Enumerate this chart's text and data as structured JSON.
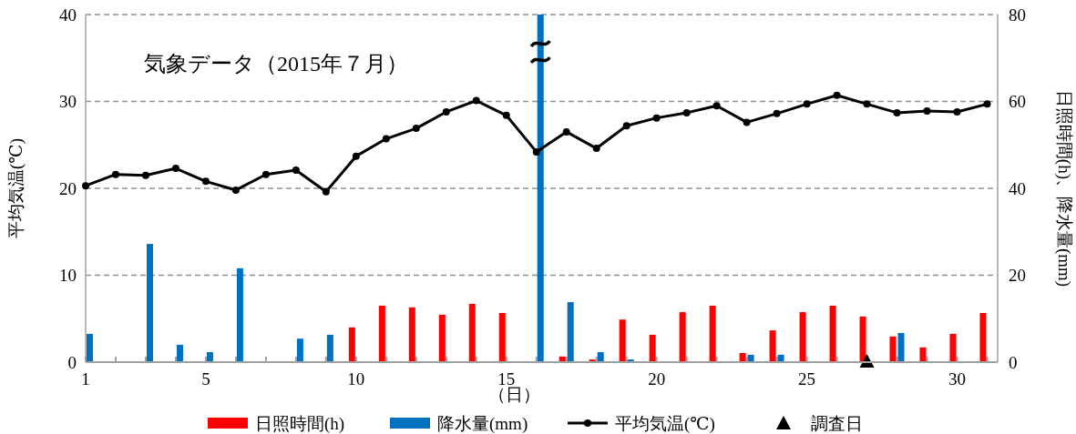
{
  "chart_data": {
    "type": "bar",
    "title": "気象データ（2015年７月）",
    "xlabel": "（日）",
    "ylabel": "平均気温(℃)",
    "y2label": "日照時間(h)、降水量(mm)",
    "xlim": [
      1,
      31.35
    ],
    "xticks": [
      1,
      {
        "value": 2,
        "label": null
      },
      {
        "value": 3,
        "label": null
      },
      {
        "value": 4,
        "label": null
      },
      5,
      {
        "value": 6,
        "label": null
      },
      {
        "value": 7,
        "label": null
      },
      {
        "value": 8,
        "label": null
      },
      {
        "value": 9,
        "label": null
      },
      10,
      {
        "value": 11,
        "label": null
      },
      {
        "value": 12,
        "label": null
      },
      {
        "value": 13,
        "label": null
      },
      {
        "value": 14,
        "label": null
      },
      15,
      {
        "value": 16,
        "label": null
      },
      {
        "value": 17,
        "label": null
      },
      {
        "value": 18,
        "label": null
      },
      {
        "value": 19,
        "label": null
      },
      20,
      {
        "value": 21,
        "label": null
      },
      {
        "value": 22,
        "label": null
      },
      {
        "value": 23,
        "label": null
      },
      {
        "value": 24,
        "label": null
      },
      25,
      {
        "value": 26,
        "label": null
      },
      {
        "value": 27,
        "label": null
      },
      {
        "value": 28,
        "label": null
      },
      {
        "value": 29,
        "label": null
      },
      30,
      {
        "value": 31,
        "label": null
      }
    ],
    "ylim": [
      0,
      40
    ],
    "yticks": [
      0,
      10,
      20,
      30,
      40
    ],
    "y2lim": [
      0,
      80
    ],
    "y2ticks": [
      0,
      20,
      40,
      60,
      80
    ],
    "grid": "y",
    "legend": "bottom",
    "x": [
      1,
      2,
      3,
      4,
      5,
      6,
      7,
      8,
      9,
      10,
      11,
      12,
      13,
      14,
      15,
      16,
      17,
      18,
      19,
      20,
      21,
      22,
      23,
      24,
      25,
      26,
      27,
      28,
      29,
      30,
      31
    ],
    "series": [
      {
        "name": "日照時間(h)",
        "axis": "y2",
        "color": "#ff0000",
        "values": [
          null,
          null,
          null,
          null,
          null,
          null,
          null,
          null,
          null,
          8.0,
          13.0,
          12.6,
          10.9,
          13.4,
          11.3,
          null,
          1.3,
          0.6,
          9.8,
          6.3,
          11.5,
          13.0,
          2.1,
          7.3,
          11.5,
          13.0,
          10.5,
          5.9,
          3.4,
          6.5,
          11.3
        ]
      },
      {
        "name": "降水量(mm)",
        "axis": "y2",
        "color": "#0070c0",
        "values": [
          6.5,
          null,
          27.2,
          4.0,
          2.3,
          21.6,
          null,
          5.4,
          6.3,
          null,
          null,
          null,
          null,
          null,
          null,
          80,
          13.8,
          2.3,
          0.6,
          null,
          null,
          null,
          1.7,
          1.7,
          null,
          null,
          null,
          6.7,
          null,
          null,
          null
        ]
      },
      {
        "name": "平均気温(℃)",
        "type": "line",
        "axis": "y",
        "color": "#000000",
        "marker": "circle",
        "line_style": "solid",
        "values": [
          20.3,
          21.6,
          21.5,
          22.3,
          20.8,
          19.8,
          21.6,
          22.1,
          19.6,
          23.7,
          25.7,
          26.9,
          28.8,
          30.1,
          28.4,
          24.2,
          26.5,
          24.6,
          27.2,
          28.1,
          28.7,
          29.5,
          27.6,
          28.6,
          29.7,
          30.7,
          29.7,
          28.7,
          28.9,
          28.8,
          29.7
        ]
      },
      {
        "name": "調査日",
        "type": "scatter",
        "axis": "y",
        "color": "#000000",
        "marker": "triangle",
        "x": [
          27
        ],
        "values": [
          0
        ]
      }
    ]
  }
}
